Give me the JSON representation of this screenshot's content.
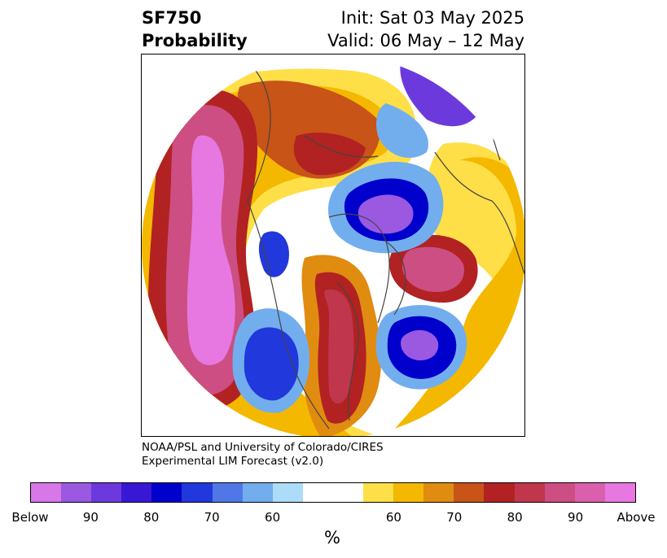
{
  "header": {
    "title_line1": "SF750",
    "title_line2": "Probability",
    "init": "Init: Sat 03 May 2025",
    "valid": "Valid: 06 May – 12 May"
  },
  "credit": {
    "line1": "NOAA/PSL and University of Colorado/CIRES",
    "line2": "Experimental LIM Forecast (v2.0)"
  },
  "colorbar": {
    "unit": "%",
    "colors": [
      "#d777e8",
      "#9b58e0",
      "#6c3adc",
      "#3818d4",
      "#0000cc",
      "#2038dc",
      "#4f78e6",
      "#72aeee",
      "#acdcf8",
      "#ffffff",
      "#ffffff",
      "#fedf48",
      "#f4b800",
      "#e08c10",
      "#c85418",
      "#b22222",
      "#c0364c",
      "#cc4e82",
      "#da60ae",
      "#e778e1"
    ],
    "tick_labels": [
      "Below",
      "90",
      "80",
      "70",
      "60",
      "60",
      "70",
      "80",
      "90",
      "Above"
    ]
  },
  "map": {
    "region": "Northern Hemisphere (polar projection)",
    "features": [
      {
        "name": "pacific-above-anomaly",
        "kind": "above",
        "level": "Above"
      },
      {
        "name": "north-america-above-anomaly",
        "kind": "above",
        "level": "80"
      },
      {
        "name": "atlantic-above-anomaly",
        "kind": "above",
        "level": "90"
      },
      {
        "name": "arctic-below-anomaly",
        "kind": "below",
        "level": "90"
      },
      {
        "name": "western-us-below-anomaly",
        "kind": "below",
        "level": "80"
      },
      {
        "name": "north-atlantic-below-anomaly",
        "kind": "below",
        "level": "90"
      },
      {
        "name": "siberia-below-anomaly",
        "kind": "below",
        "level": "70"
      }
    ]
  }
}
